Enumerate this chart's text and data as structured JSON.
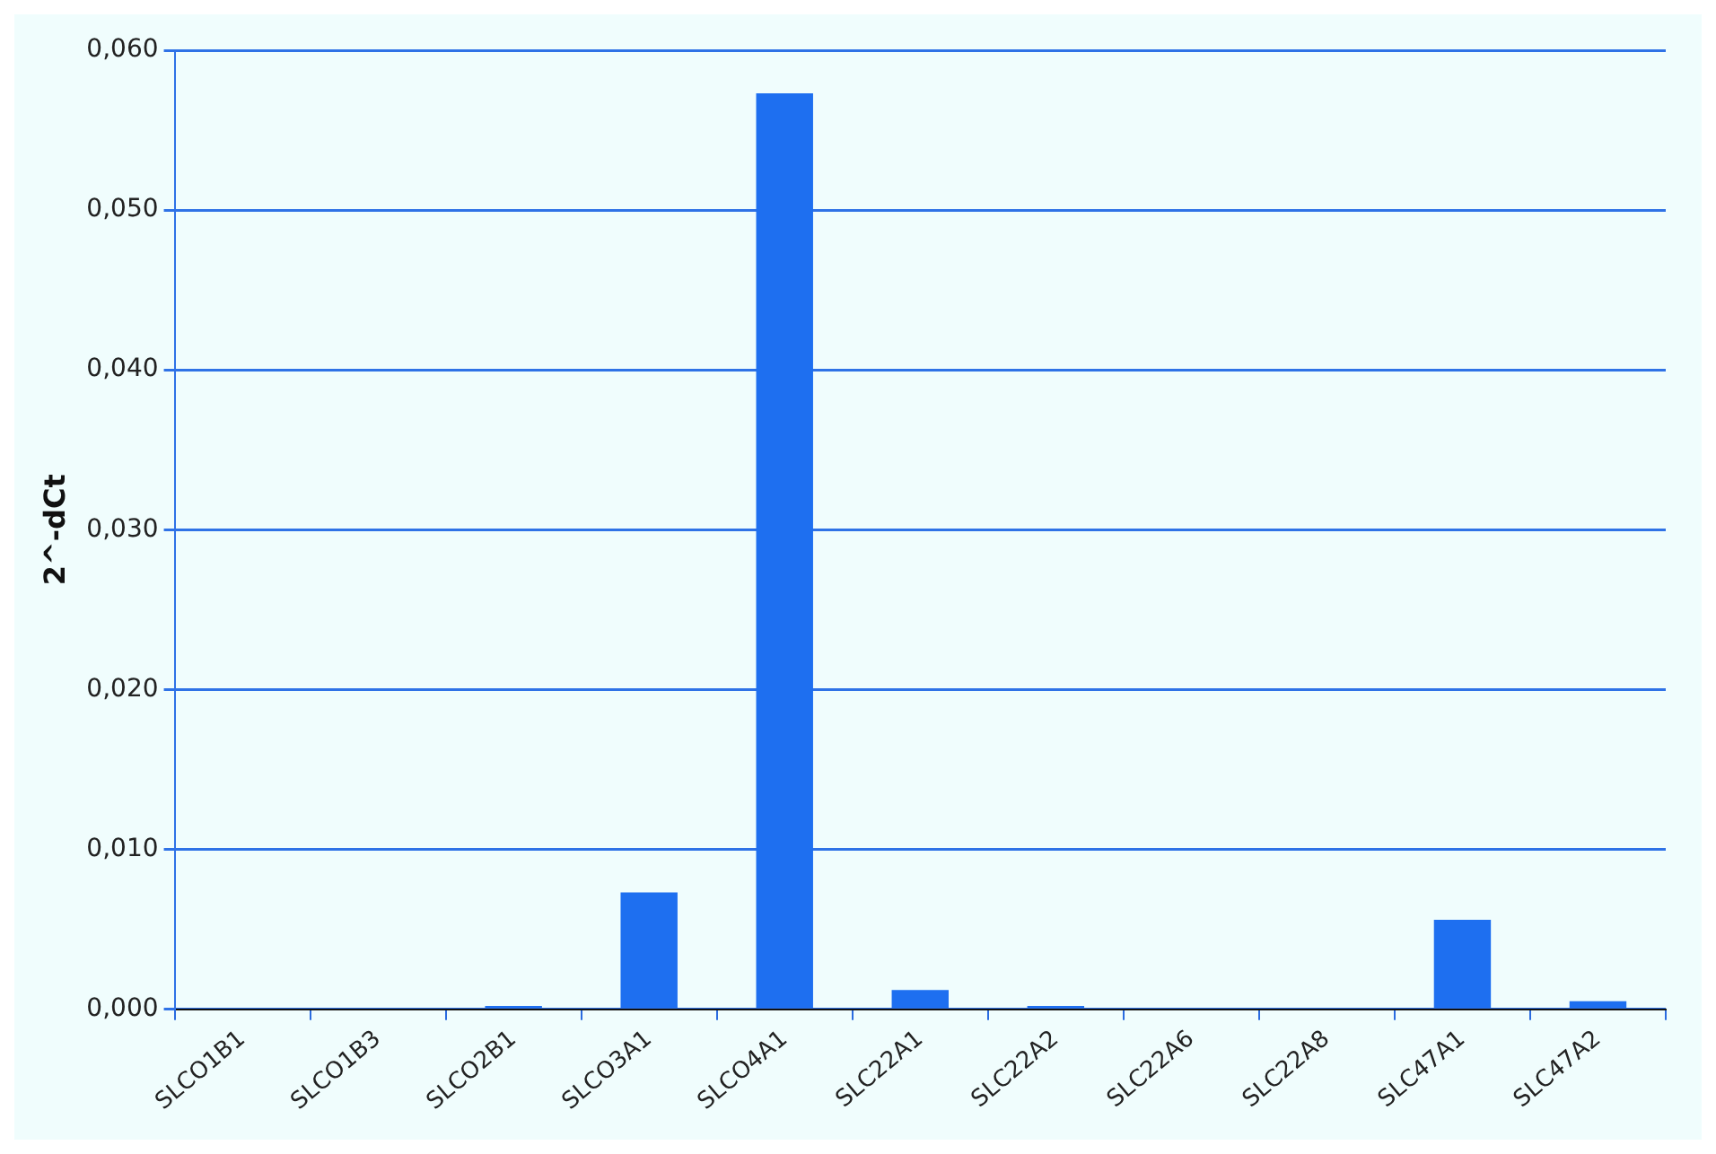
{
  "chart_data": {
    "type": "bar",
    "ylabel": "2^-dCt",
    "categories": [
      "SLCO1B1",
      "SLCO1B3",
      "SLCO2B1",
      "SLCO3A1",
      "SLCO4A1",
      "SLC22A1",
      "SLC22A2",
      "SLC22A6",
      "SLC22A8",
      "SLC47A1",
      "SLC47A2"
    ],
    "values": [
      0,
      0,
      0.0002,
      0.0073,
      0.0573,
      0.0012,
      0.0002,
      0,
      0,
      0.0056,
      0.0005
    ],
    "color": "#1e6ff0",
    "ylim": [
      0,
      0.06
    ],
    "yticks": [
      {
        "value": 0,
        "label": "0,000"
      },
      {
        "value": 0.01,
        "label": "0,010"
      },
      {
        "value": 0.02,
        "label": "0,020"
      },
      {
        "value": 0.03,
        "label": "0,030"
      },
      {
        "value": 0.04,
        "label": "0,040"
      },
      {
        "value": 0.05,
        "label": "0,050"
      },
      {
        "value": 0.06,
        "label": "0,060"
      }
    ],
    "grid": "y",
    "legend": false
  }
}
